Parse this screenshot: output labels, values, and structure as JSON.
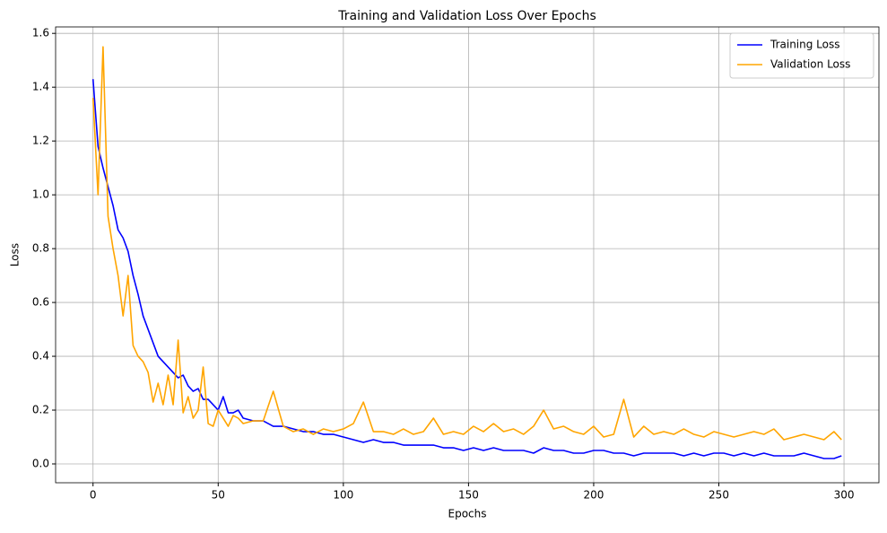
{
  "chart_data": {
    "type": "line",
    "title": "Training and Validation Loss Over Epochs",
    "x_label": "Epochs",
    "y_label": "Loss",
    "x": [
      0,
      2,
      4,
      6,
      8,
      10,
      12,
      14,
      16,
      18,
      20,
      22,
      24,
      26,
      28,
      30,
      32,
      34,
      36,
      38,
      40,
      42,
      44,
      46,
      48,
      50,
      52,
      54,
      56,
      58,
      60,
      64,
      68,
      72,
      76,
      80,
      84,
      88,
      92,
      96,
      100,
      104,
      108,
      112,
      116,
      120,
      124,
      128,
      132,
      136,
      140,
      144,
      148,
      152,
      156,
      160,
      164,
      168,
      172,
      176,
      180,
      184,
      188,
      192,
      196,
      200,
      204,
      208,
      212,
      216,
      220,
      224,
      228,
      232,
      236,
      240,
      244,
      248,
      252,
      256,
      260,
      264,
      268,
      272,
      276,
      280,
      284,
      288,
      292,
      296,
      299
    ],
    "series": [
      {
        "name": "Training Loss",
        "color": "#0000ff",
        "values": [
          1.43,
          1.18,
          1.1,
          1.03,
          0.96,
          0.87,
          0.84,
          0.79,
          0.7,
          0.63,
          0.55,
          0.5,
          0.45,
          0.4,
          0.38,
          0.36,
          0.34,
          0.32,
          0.33,
          0.29,
          0.27,
          0.28,
          0.24,
          0.24,
          0.22,
          0.2,
          0.25,
          0.19,
          0.19,
          0.2,
          0.17,
          0.16,
          0.16,
          0.14,
          0.14,
          0.13,
          0.12,
          0.12,
          0.11,
          0.11,
          0.1,
          0.09,
          0.08,
          0.09,
          0.08,
          0.08,
          0.07,
          0.07,
          0.07,
          0.07,
          0.06,
          0.06,
          0.05,
          0.06,
          0.05,
          0.06,
          0.05,
          0.05,
          0.05,
          0.04,
          0.06,
          0.05,
          0.05,
          0.04,
          0.04,
          0.05,
          0.05,
          0.04,
          0.04,
          0.03,
          0.04,
          0.04,
          0.04,
          0.04,
          0.03,
          0.04,
          0.03,
          0.04,
          0.04,
          0.03,
          0.04,
          0.03,
          0.04,
          0.03,
          0.03,
          0.03,
          0.04,
          0.03,
          0.02,
          0.02,
          0.03
        ]
      },
      {
        "name": "Validation Loss",
        "color": "#ffa500",
        "values": [
          1.36,
          1.0,
          1.55,
          0.92,
          0.8,
          0.7,
          0.55,
          0.7,
          0.44,
          0.4,
          0.38,
          0.34,
          0.23,
          0.3,
          0.22,
          0.33,
          0.22,
          0.46,
          0.19,
          0.25,
          0.17,
          0.2,
          0.36,
          0.15,
          0.14,
          0.2,
          0.17,
          0.14,
          0.18,
          0.17,
          0.15,
          0.16,
          0.16,
          0.27,
          0.14,
          0.12,
          0.13,
          0.11,
          0.13,
          0.12,
          0.13,
          0.15,
          0.23,
          0.12,
          0.12,
          0.11,
          0.13,
          0.11,
          0.12,
          0.17,
          0.11,
          0.12,
          0.11,
          0.14,
          0.12,
          0.15,
          0.12,
          0.13,
          0.11,
          0.14,
          0.2,
          0.13,
          0.14,
          0.12,
          0.11,
          0.14,
          0.1,
          0.11,
          0.24,
          0.1,
          0.14,
          0.11,
          0.12,
          0.11,
          0.13,
          0.11,
          0.1,
          0.12,
          0.11,
          0.1,
          0.11,
          0.12,
          0.11,
          0.13,
          0.09,
          0.1,
          0.11,
          0.1,
          0.09,
          0.12,
          0.09
        ]
      }
    ],
    "xlim": [
      -14.95,
      313.95
    ],
    "ylim": [
      -0.07,
      1.624
    ],
    "xticks": [
      0,
      50,
      100,
      150,
      200,
      250,
      300
    ],
    "yticks": [
      {
        "value": 0,
        "label": "0.0"
      },
      0.2,
      0.4,
      0.6,
      0.8,
      {
        "value": 1,
        "label": "1.0"
      },
      1.2,
      1.4,
      1.6
    ],
    "grid": true,
    "legend": "upper right"
  }
}
